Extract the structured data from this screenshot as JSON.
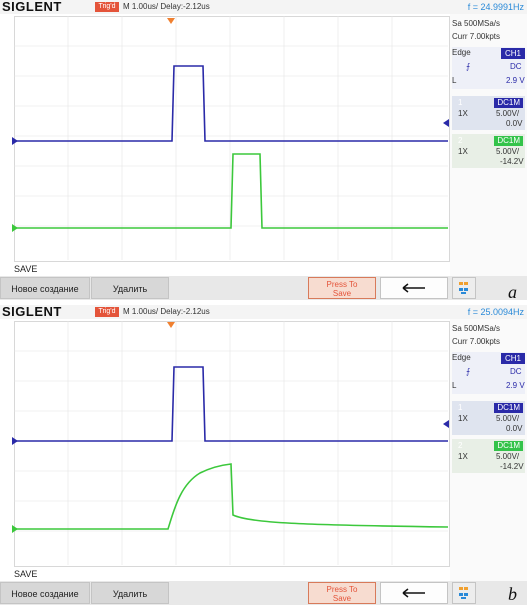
{
  "brand": "SIGLENT",
  "trig_status": "Trig'd",
  "timebase": "M 1.00us/",
  "delay": "Delay:-2.12us",
  "side": {
    "sample_rate": "Sa 500MSa/s",
    "curr_points": "Curr 7.00kpts",
    "trigger_type": "Edge",
    "trigger_source": "CH1",
    "coupling": "DC",
    "level_label": "L",
    "level": "2.9 V",
    "ch1": {
      "num": "1",
      "coupling": "DC1M",
      "probe": "1X",
      "scale": "5.00V/",
      "offset": "0.0V"
    },
    "ch2": {
      "num": "2",
      "coupling": "DC1M",
      "probe": "1X",
      "scale": "5.00V/",
      "offset": "-14.2V"
    }
  },
  "menu": {
    "title": "SAVE",
    "new_label": "Новое создание",
    "delete_label": "Удалить",
    "press_line1": "Press To",
    "press_line2": "Save"
  },
  "panels": [
    {
      "letter": "a",
      "frequency": "f = 24.9991Hz"
    },
    {
      "letter": "b",
      "frequency": "f = 25.0094Hz"
    }
  ],
  "colors": {
    "ch1": "#2a2aa8",
    "ch2": "#3cc83c",
    "accent": "#e4543a"
  },
  "icons": [
    "trigger-marker-icon",
    "edge-rising-icon",
    "back-arrow-icon",
    "menu-grid-icon"
  ]
}
